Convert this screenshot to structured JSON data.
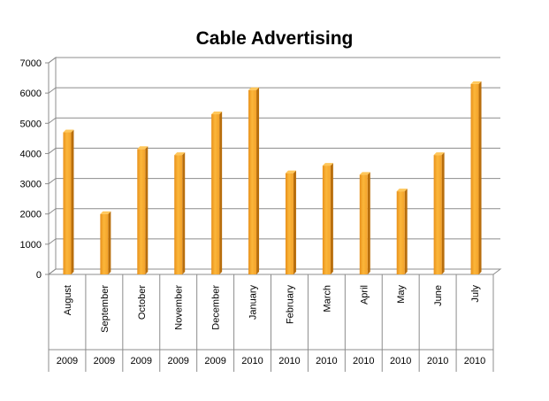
{
  "chart_data": {
    "type": "bar",
    "title": "Cable Advertising",
    "xlabel": "",
    "ylabel": "",
    "ylim": [
      0,
      7000
    ],
    "yticks": [
      "0",
      "1000",
      "2000",
      "3000",
      "4000",
      "5000",
      "6000",
      "7000"
    ],
    "grid": true,
    "legend": "none",
    "categories": [
      {
        "month": "August",
        "year": "2009"
      },
      {
        "month": "September",
        "year": "2009"
      },
      {
        "month": "October",
        "year": "2009"
      },
      {
        "month": "November",
        "year": "2009"
      },
      {
        "month": "December",
        "year": "2009"
      },
      {
        "month": "January",
        "year": "2010"
      },
      {
        "month": "February",
        "year": "2010"
      },
      {
        "month": "March",
        "year": "2010"
      },
      {
        "month": "April",
        "year": "2010"
      },
      {
        "month": "May",
        "year": "2010"
      },
      {
        "month": "June",
        "year": "2010"
      },
      {
        "month": "July",
        "year": "2010"
      }
    ],
    "values": [
      4700,
      2000,
      4150,
      3950,
      5300,
      6100,
      3350,
      3600,
      3300,
      2750,
      3950,
      6300
    ],
    "bar_color": "#F5A623"
  }
}
